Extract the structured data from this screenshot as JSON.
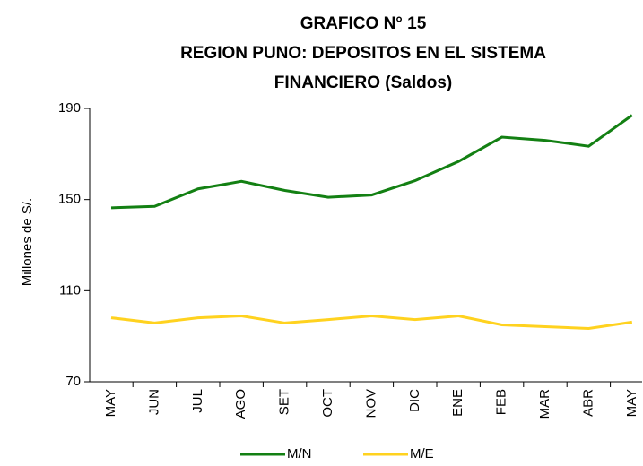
{
  "chart_data": {
    "type": "line",
    "title": [
      "GRAFICO N° 15",
      "REGION PUNO: DEPOSITOS EN EL SISTEMA",
      "FINANCIERO (Saldos)"
    ],
    "y_label": "Millones de S/.",
    "categories": [
      "MAY",
      "JUN",
      "JUL",
      "AGO",
      "SET",
      "OCT",
      "NOV",
      "DIC",
      "ENE",
      "FEB",
      "MAR",
      "ABR",
      "MAY"
    ],
    "series": [
      {
        "name": "M/N",
        "color": "#138013",
        "values": [
          146.4,
          147,
          154.7,
          158,
          154,
          151,
          152,
          158.3,
          166.7,
          177.4,
          176,
          173.4,
          187
        ]
      },
      {
        "name": "M/E",
        "color": "#ffd21f",
        "values": [
          98.1,
          95.8,
          98.1,
          98.9,
          95.8,
          97.3,
          98.9,
          97.3,
          98.9,
          95,
          94.2,
          93.4,
          96.2
        ]
      }
    ],
    "ylim": [
      70,
      190
    ],
    "yticks": [
      70,
      110,
      150,
      190
    ],
    "grid": false,
    "legend": "bottom"
  }
}
